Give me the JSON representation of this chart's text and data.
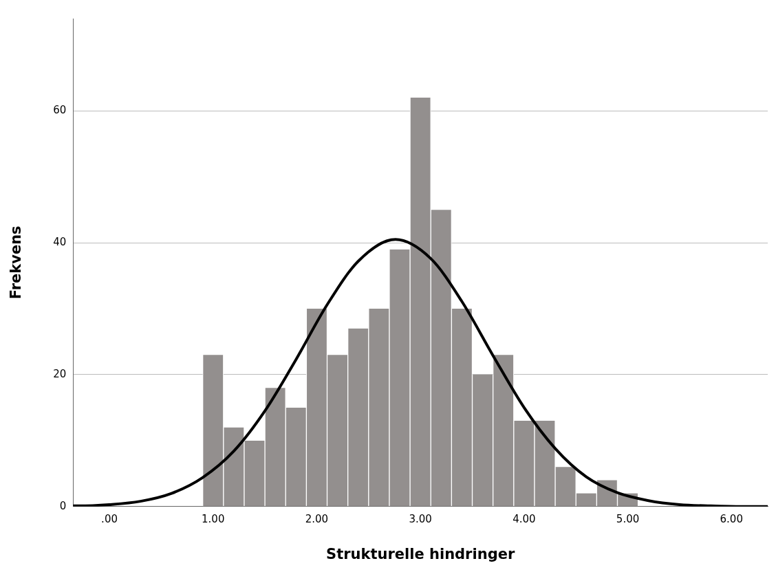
{
  "chart_data": {
    "type": "histogram",
    "xlabel": "Strukturelle hindringer",
    "ylabel": "Frekvens",
    "bins": [
      0.9,
      1.1,
      1.3,
      1.5,
      1.7,
      1.9,
      2.1,
      2.3,
      2.5,
      2.7,
      2.9,
      3.1,
      3.3,
      3.5,
      3.7,
      3.9,
      4.1,
      4.3,
      4.5,
      4.7,
      4.9,
      5.1
    ],
    "values": [
      23,
      12,
      10,
      18,
      15,
      30,
      23,
      27,
      30,
      39,
      62,
      45,
      30,
      20,
      23,
      13,
      13,
      6,
      2,
      4,
      2
    ],
    "color": "#938f8e",
    "series": [
      {
        "type": "line",
        "color": "#000000",
        "x": [
          -0.35,
          -0.3,
          0.0,
          0.3,
          0.6,
          0.9,
          1.2,
          1.5,
          1.8,
          2.1,
          2.4,
          2.76,
          3.1,
          3.4,
          3.7,
          4.0,
          4.3,
          4.6,
          4.9,
          5.2,
          5.5,
          5.8,
          6.1,
          6.35
        ],
        "values": [
          0.1,
          0.1,
          0.3,
          0.8,
          2.0,
          4.4,
          8.4,
          14.5,
          22.3,
          30.6,
          37.2,
          40.5,
          37.6,
          31.1,
          22.9,
          15.0,
          8.8,
          4.5,
          2.1,
          0.9,
          0.3,
          0.1,
          0,
          0
        ]
      }
    ],
    "xlim": [
      -0.35,
      6.35
    ],
    "ylim": [
      0,
      74
    ],
    "xticks": [
      {
        "value": 0,
        "label": ".00"
      },
      {
        "value": 1,
        "label": "1.00"
      },
      {
        "value": 2,
        "label": "2.00"
      },
      {
        "value": 3,
        "label": "3.00"
      },
      {
        "value": 4,
        "label": "4.00"
      },
      {
        "value": 5,
        "label": "5.00"
      },
      {
        "value": 6,
        "label": "6.00"
      }
    ],
    "yticks": [
      0,
      20,
      40,
      60
    ],
    "grid": "y",
    "legend": false,
    "marker": "none",
    "line_style": "solid"
  }
}
